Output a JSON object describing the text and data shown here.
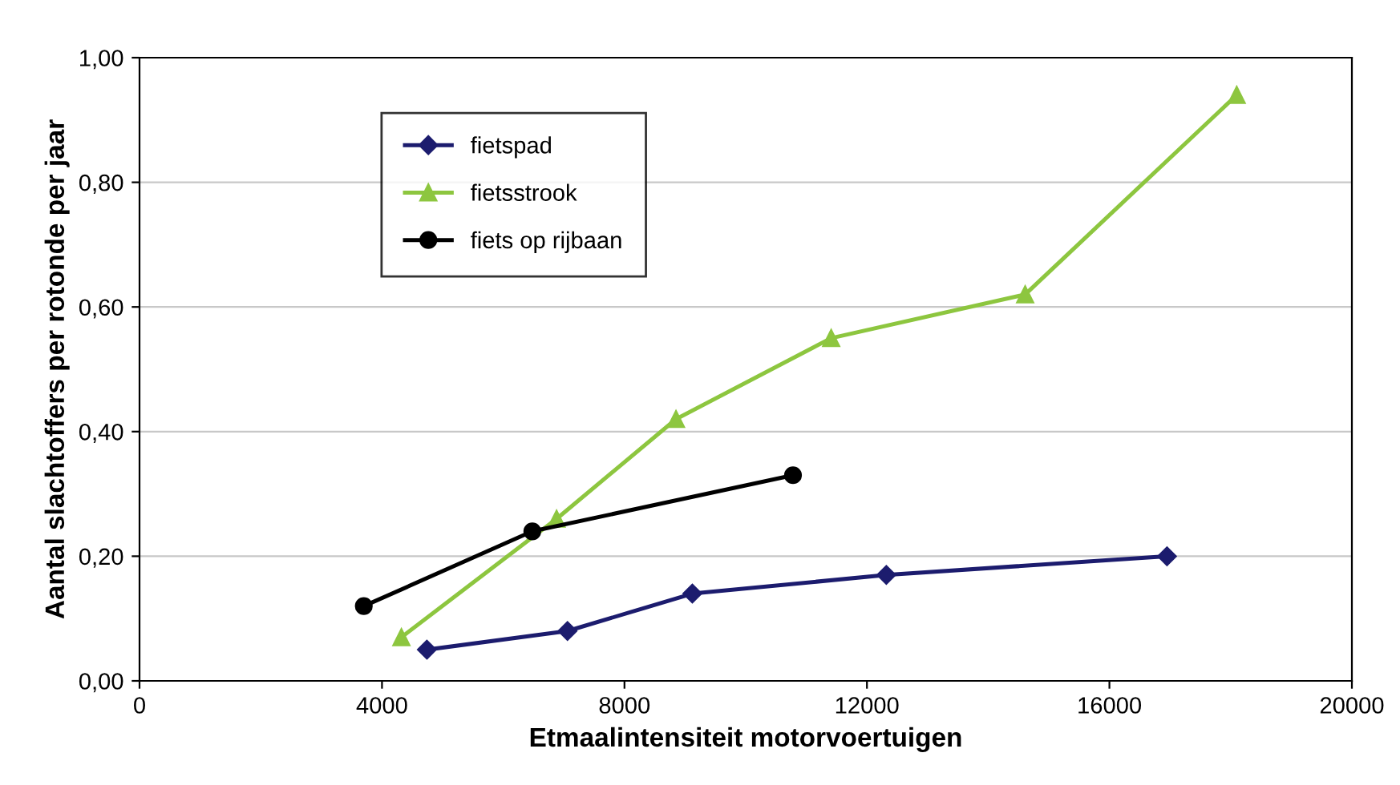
{
  "chart_data": {
    "type": "line",
    "xlabel": "Etmaalintensiteit motorvoertuigen",
    "ylabel": "Aantal slachtoffers per rotonde per jaar",
    "xlim": [
      0,
      20000
    ],
    "xticks": [
      0,
      4000,
      8000,
      12000,
      16000,
      20000
    ],
    "ylim": [
      0,
      1
    ],
    "yticks": [
      {
        "value": 0,
        "label": "0,00"
      },
      {
        "value": 0.2,
        "label": "0,20"
      },
      {
        "value": 0.4,
        "label": "0,40"
      },
      {
        "value": 0.6,
        "label": "0,60"
      },
      {
        "value": 0.8,
        "label": "0,80"
      },
      {
        "value": 1,
        "label": "1,00"
      }
    ],
    "grid": "y",
    "legend": "top left",
    "line_style": "solid",
    "series": [
      {
        "name": "fietspad",
        "color": "#1c1c6e",
        "marker": "diamond",
        "x": [
          4740,
          7060,
          9120,
          12320,
          16950
        ],
        "values": [
          0.05,
          0.08,
          0.14,
          0.17,
          0.2
        ]
      },
      {
        "name": "fietsstrook",
        "color": "#8dc63f",
        "marker": "triangle",
        "x": [
          4320,
          6880,
          8850,
          11410,
          14610,
          18100
        ],
        "values": [
          0.07,
          0.26,
          0.42,
          0.55,
          0.62,
          0.94
        ]
      },
      {
        "name": "fiets op rijbaan",
        "color": "#000000",
        "marker": "circle",
        "x": [
          3700,
          6480,
          10780
        ],
        "values": [
          0.12,
          0.24,
          0.33
        ]
      }
    ]
  }
}
